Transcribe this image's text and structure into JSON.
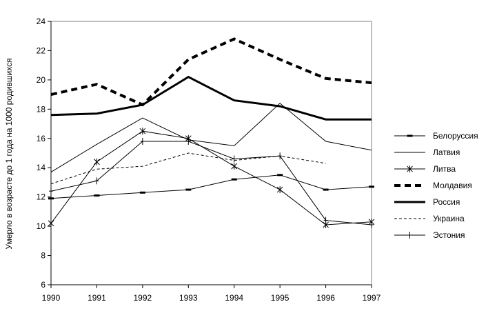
{
  "chart_data": {
    "type": "line",
    "title": "",
    "xlabel": "",
    "ylabel": "Умерло в возрасте до 1 года на 1000 родившихся",
    "x": [
      1990,
      1991,
      1992,
      1993,
      1994,
      1995,
      1996,
      1997
    ],
    "x_tick_labels": [
      "1990",
      "1991",
      "1992",
      "1993",
      "1994",
      "1995",
      "1996",
      "1997"
    ],
    "ylim": [
      6,
      24
    ],
    "y_ticks": [
      6,
      8,
      10,
      12,
      14,
      16,
      18,
      20,
      22,
      24
    ],
    "y_tick_labels": [
      "6",
      "8",
      "10",
      "12",
      "14",
      "16",
      "18",
      "20",
      "22",
      "24"
    ],
    "grid": false,
    "legend_position": "right",
    "series": [
      {
        "name": "Белоруссия",
        "style": "thin-dash-marker",
        "color": "#000000",
        "values": [
          11.9,
          12.1,
          12.3,
          12.5,
          13.2,
          13.5,
          12.5,
          12.7
        ]
      },
      {
        "name": "Латвия",
        "style": "thin",
        "color": "#000000",
        "values": [
          13.7,
          15.6,
          17.4,
          15.9,
          15.5,
          18.4,
          15.8,
          15.2
        ]
      },
      {
        "name": "Литва",
        "style": "thin-star-marker",
        "color": "#000000",
        "values": [
          10.2,
          14.4,
          16.5,
          16.0,
          14.1,
          12.5,
          10.1,
          10.3
        ]
      },
      {
        "name": "Молдавия",
        "style": "thick-dashed",
        "color": "#000000",
        "values": [
          19.0,
          19.7,
          18.3,
          21.4,
          22.8,
          21.4,
          20.1,
          19.8
        ]
      },
      {
        "name": "Россия",
        "style": "thick",
        "color": "#000000",
        "values": [
          17.6,
          17.7,
          18.3,
          20.2,
          18.6,
          18.2,
          17.3,
          17.3
        ]
      },
      {
        "name": "Украина",
        "style": "thin-dashed",
        "color": "#000000",
        "values": [
          12.9,
          13.9,
          14.1,
          15.0,
          14.5,
          14.8,
          14.3,
          null
        ]
      },
      {
        "name": "Эстония",
        "style": "thin-plus-marker",
        "color": "#000000",
        "values": [
          12.4,
          13.1,
          15.8,
          15.8,
          14.6,
          14.8,
          10.4,
          10.1
        ]
      }
    ]
  }
}
